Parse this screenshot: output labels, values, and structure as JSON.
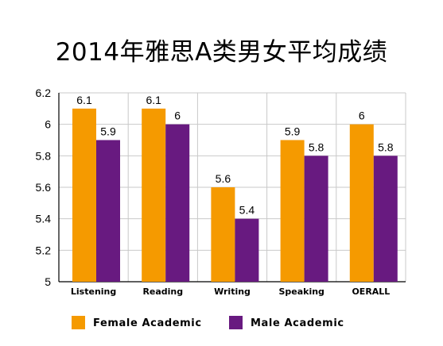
{
  "chart_data": {
    "type": "bar",
    "title": "2014年雅思A类男女平均成绩",
    "categories": [
      "Listening",
      "Reading",
      "Writing",
      "Speaking",
      "OERALL"
    ],
    "series": [
      {
        "name": "Female Academic",
        "color": "#f59a00",
        "values": [
          6.1,
          6.1,
          5.6,
          5.9,
          6
        ]
      },
      {
        "name": "Male Academic",
        "color": "#681a80",
        "values": [
          5.9,
          6,
          5.4,
          5.8,
          5.8
        ]
      }
    ],
    "ylim": [
      5,
      6.2
    ],
    "yticks": [
      "5",
      "5.2",
      "5.4",
      "5.6",
      "5.8",
      "6",
      "6.2"
    ],
    "grid": true,
    "legend": "bottom"
  }
}
